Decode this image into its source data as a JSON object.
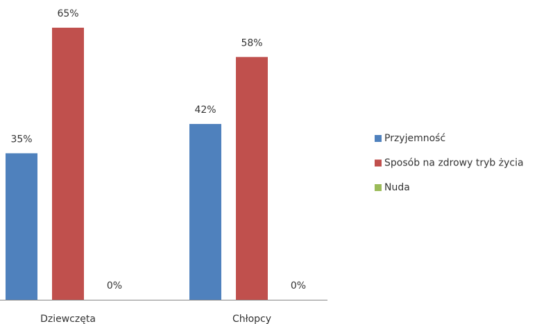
{
  "chart_data": {
    "type": "bar",
    "categories": [
      "Dziewczęta",
      "Chłopcy"
    ],
    "series": [
      {
        "name": "Przyjemność",
        "color": "#4f81bd",
        "values": [
          35,
          42
        ],
        "value_labels": [
          "35%",
          "42%"
        ]
      },
      {
        "name": "Sposób na zdrowy tryb życia",
        "color": "#c0504d",
        "values": [
          65,
          58
        ],
        "value_labels": [
          "65%",
          "58%"
        ]
      },
      {
        "name": "Nuda",
        "color": "#9bbb59",
        "values": [
          0,
          0
        ],
        "value_labels": [
          "0%",
          "0%"
        ]
      }
    ],
    "legend": "right"
  }
}
